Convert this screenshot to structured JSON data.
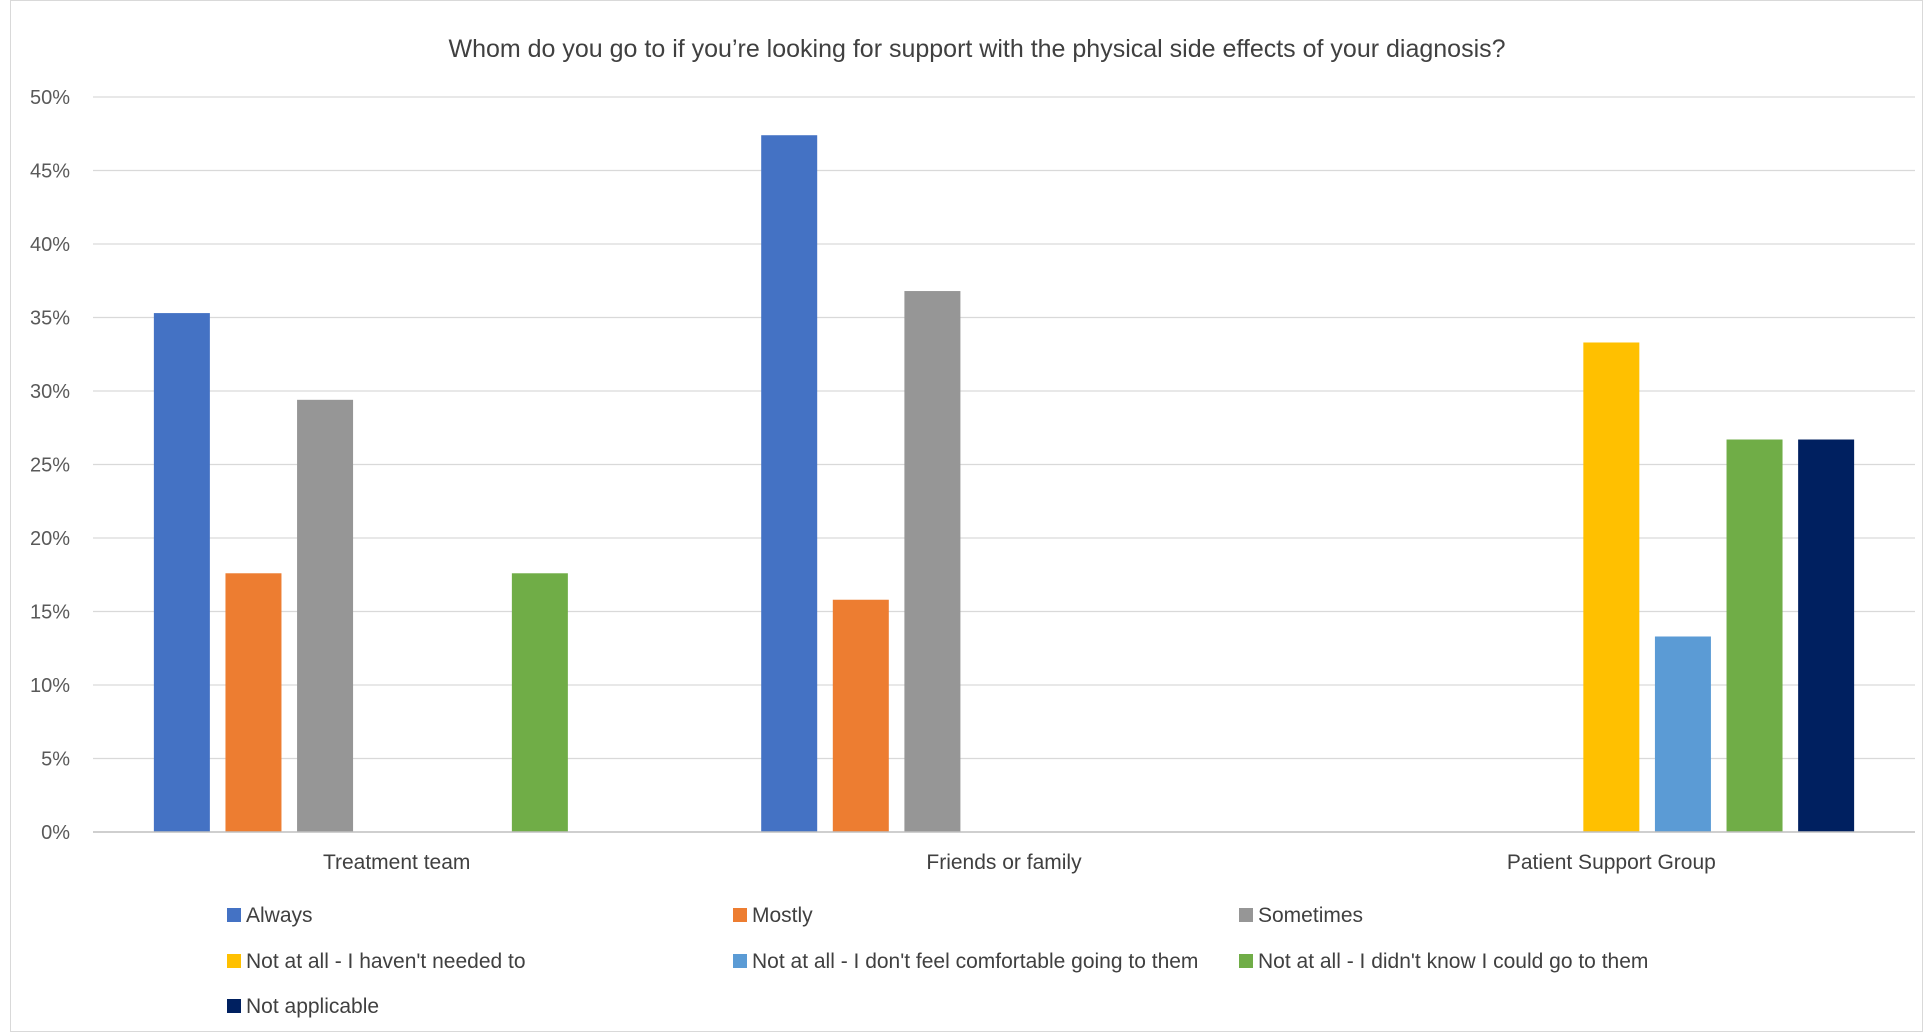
{
  "chart_data": {
    "type": "bar",
    "title": "Whom do you go to if you’re looking for support with the physical side effects of your diagnosis?",
    "xlabel": "",
    "ylabel": "",
    "ylim": [
      0,
      0.5
    ],
    "y_ticks": [
      {
        "value": 0,
        "label": "0%"
      },
      {
        "value": 0.05,
        "label": "5%"
      },
      {
        "value": 0.1,
        "label": "10%"
      },
      {
        "value": 0.15,
        "label": "15%"
      },
      {
        "value": 0.2,
        "label": "20%"
      },
      {
        "value": 0.25,
        "label": "25%"
      },
      {
        "value": 0.3,
        "label": "30%"
      },
      {
        "value": 0.35,
        "label": "35%"
      },
      {
        "value": 0.4,
        "label": "40%"
      },
      {
        "value": 0.45,
        "label": "45%"
      },
      {
        "value": 0.5,
        "label": "50%"
      }
    ],
    "grid": true,
    "legend_position": "bottom",
    "categories": [
      "Treatment team",
      "Friends or family",
      "Patient Support Group"
    ],
    "series": [
      {
        "name": "Always",
        "color": "#4472c4",
        "values": [
          0.353,
          0.474,
          0
        ]
      },
      {
        "name": "Mostly",
        "color": "#ed7d31",
        "values": [
          0.176,
          0.158,
          0
        ]
      },
      {
        "name": "Sometimes",
        "color": "#969696",
        "values": [
          0.294,
          0.368,
          0
        ]
      },
      {
        "name": "Not at all - I haven't needed to",
        "color": "#ffc000",
        "values": [
          0,
          0,
          0.333
        ]
      },
      {
        "name": "Not at all - I don't feel comfortable going to them",
        "color": "#5b9bd5",
        "values": [
          0,
          0,
          0.133
        ]
      },
      {
        "name": "Not at all - I didn't know I could go to them",
        "color": "#70ad47",
        "values": [
          0.176,
          0,
          0.267
        ]
      },
      {
        "name": "Not applicable",
        "color": "#002060",
        "values": [
          0,
          0,
          0.267
        ]
      }
    ]
  }
}
